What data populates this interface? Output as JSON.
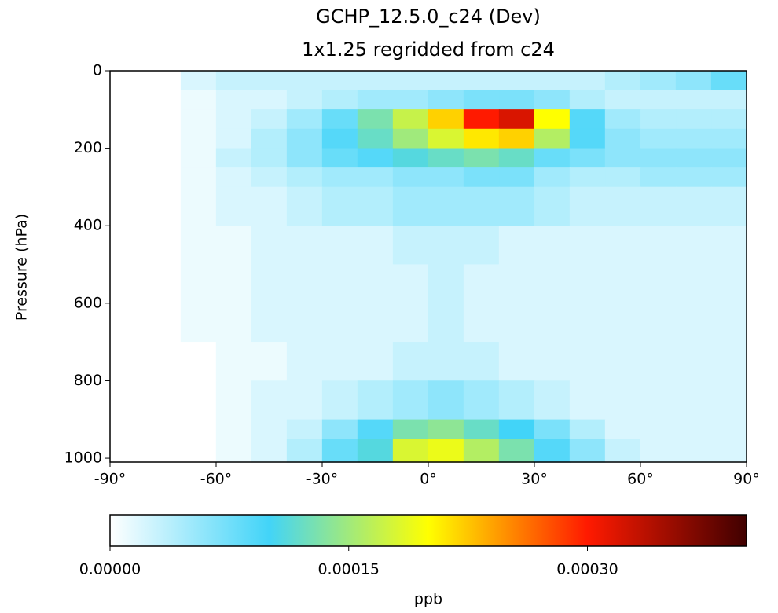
{
  "chart_data": {
    "type": "heatmap",
    "title": "GCHP_12.5.0_c24 (Dev)",
    "subtitle": "1x1.25 regridded from c24",
    "ylabel": "Pressure (hPa)",
    "colorbar_label": "ppb",
    "xbins": [
      -90,
      -80,
      -70,
      -60,
      -50,
      -40,
      -30,
      -20,
      -10,
      0,
      10,
      20,
      30,
      40,
      50,
      60,
      70,
      80,
      90
    ],
    "ybins": [
      0,
      50,
      100,
      150,
      200,
      250,
      300,
      400,
      500,
      600,
      700,
      800,
      900,
      950,
      1010
    ],
    "values": [
      [
        0,
        0,
        2e-05,
        3e-05,
        3e-05,
        3e-05,
        3e-05,
        3e-05,
        3e-05,
        3e-05,
        3e-05,
        3e-05,
        3e-05,
        3e-05,
        4e-05,
        5e-05,
        6e-05,
        8e-05
      ],
      [
        0,
        0,
        1e-05,
        2e-05,
        2e-05,
        3e-05,
        4e-05,
        5e-05,
        5e-05,
        6e-05,
        7e-05,
        7e-05,
        6e-05,
        4e-05,
        3e-05,
        3e-05,
        3e-05,
        3e-05
      ],
      [
        0,
        0,
        1e-05,
        2e-05,
        3e-05,
        5e-05,
        8e-05,
        0.00013,
        0.00017,
        0.00022,
        0.0003,
        0.00032,
        0.0002,
        9e-05,
        5e-05,
        4e-05,
        4e-05,
        4e-05
      ],
      [
        0,
        0,
        1e-05,
        2e-05,
        4e-05,
        6e-05,
        9e-05,
        0.00012,
        0.00015,
        0.00018,
        0.00021,
        0.00022,
        0.00016,
        9e-05,
        6e-05,
        5e-05,
        5e-05,
        5e-05
      ],
      [
        0,
        0,
        1e-05,
        3e-05,
        4e-05,
        6e-05,
        8e-05,
        9e-05,
        0.00011,
        0.00012,
        0.00013,
        0.00012,
        8e-05,
        7e-05,
        6e-05,
        6e-05,
        6e-05,
        6e-05
      ],
      [
        0,
        0,
        1e-05,
        2e-05,
        3e-05,
        4e-05,
        5e-05,
        5e-05,
        6e-05,
        6e-05,
        7e-05,
        7e-05,
        5e-05,
        4e-05,
        4e-05,
        5e-05,
        5e-05,
        5e-05
      ],
      [
        0,
        0,
        1e-05,
        2e-05,
        2e-05,
        3e-05,
        4e-05,
        4e-05,
        5e-05,
        5e-05,
        5e-05,
        5e-05,
        4e-05,
        3e-05,
        3e-05,
        3e-05,
        3e-05,
        3e-05
      ],
      [
        0,
        0,
        1e-05,
        1e-05,
        2e-05,
        2e-05,
        2e-05,
        2e-05,
        3e-05,
        3e-05,
        3e-05,
        2e-05,
        2e-05,
        2e-05,
        2e-05,
        2e-05,
        2e-05,
        2e-05
      ],
      [
        0,
        0,
        1e-05,
        1e-05,
        2e-05,
        2e-05,
        2e-05,
        2e-05,
        2e-05,
        3e-05,
        2e-05,
        2e-05,
        2e-05,
        2e-05,
        2e-05,
        2e-05,
        2e-05,
        2e-05
      ],
      [
        0,
        0,
        1e-05,
        1e-05,
        2e-05,
        2e-05,
        2e-05,
        2e-05,
        2e-05,
        3e-05,
        2e-05,
        2e-05,
        2e-05,
        2e-05,
        2e-05,
        2e-05,
        2e-05,
        2e-05
      ],
      [
        0,
        0,
        0,
        1e-05,
        1e-05,
        2e-05,
        2e-05,
        2e-05,
        3e-05,
        3e-05,
        3e-05,
        2e-05,
        2e-05,
        2e-05,
        2e-05,
        2e-05,
        2e-05,
        2e-05
      ],
      [
        0,
        0,
        0,
        1e-05,
        2e-05,
        2e-05,
        3e-05,
        4e-05,
        5e-05,
        6e-05,
        5e-05,
        4e-05,
        3e-05,
        2e-05,
        2e-05,
        2e-05,
        2e-05,
        2e-05
      ],
      [
        0,
        0,
        0,
        1e-05,
        2e-05,
        3e-05,
        6e-05,
        9e-05,
        0.00013,
        0.00014,
        0.00012,
        0.0001,
        7e-05,
        4e-05,
        2e-05,
        2e-05,
        2e-05,
        2e-05
      ],
      [
        0,
        0,
        0,
        1e-05,
        2e-05,
        4e-05,
        8e-05,
        0.00011,
        0.00018,
        0.00019,
        0.00016,
        0.00013,
        9e-05,
        6e-05,
        3e-05,
        2e-05,
        2e-05,
        2e-05
      ]
    ],
    "xlim": [
      -90,
      90
    ],
    "ylim": [
      1010,
      0
    ],
    "xticks": [
      {
        "value": -90,
        "label": "-90°"
      },
      {
        "value": -60,
        "label": "-60°"
      },
      {
        "value": -30,
        "label": "-30°"
      },
      {
        "value": 0,
        "label": "0°"
      },
      {
        "value": 30,
        "label": "30°"
      },
      {
        "value": 60,
        "label": "60°"
      },
      {
        "value": 90,
        "label": "90°"
      }
    ],
    "yticks": [
      0,
      200,
      400,
      600,
      800,
      1000
    ],
    "clim": [
      0,
      0.0004
    ],
    "cticks": [
      {
        "value": 0,
        "label": "0.00000"
      },
      {
        "value": 0.00015,
        "label": "0.00015"
      },
      {
        "value": 0.0003,
        "label": "0.00030"
      }
    ],
    "colormap": [
      "#ffffff",
      "#42d4f8",
      "#ffff00",
      "#ff1a00",
      "#400000"
    ]
  }
}
